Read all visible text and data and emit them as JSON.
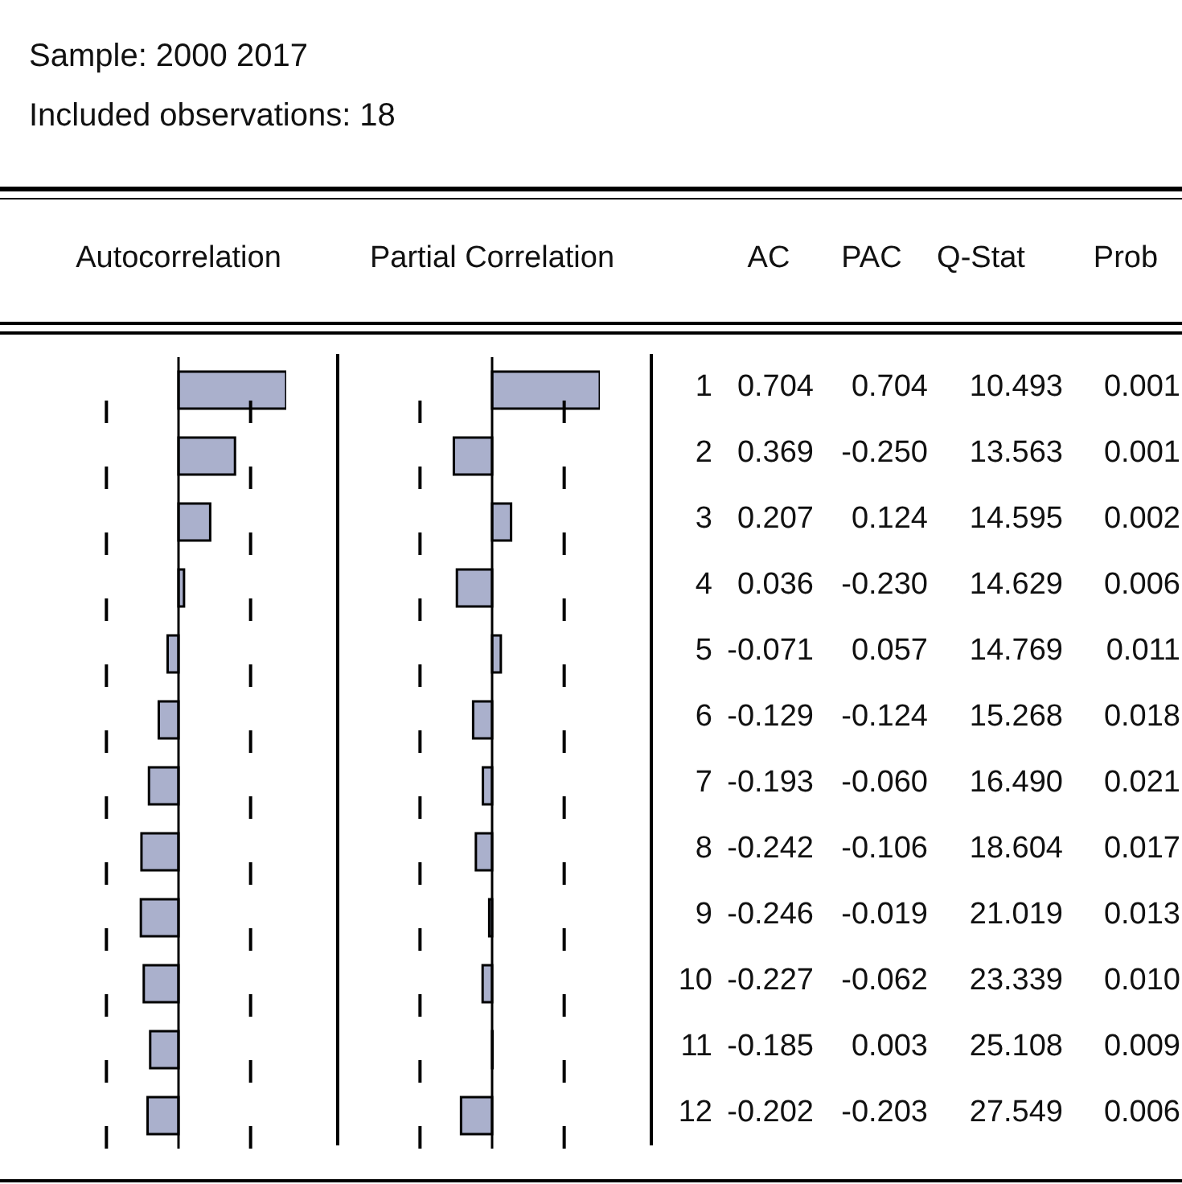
{
  "chart_data": [
    {
      "type": "bar",
      "orientation": "horizontal",
      "title": "Autocorrelation",
      "xlabel": "AC",
      "annotations": [
        "Sample: 2000 2017",
        "Included observations: 18"
      ],
      "categories": [
        "1",
        "2",
        "3",
        "4",
        "5",
        "6",
        "7",
        "8",
        "9",
        "10",
        "11",
        "12"
      ],
      "color": "#aab0cc",
      "tick_labels": "y",
      "values": [
        0.704,
        0.369,
        0.207,
        0.036,
        -0.071,
        -0.129,
        -0.193,
        -0.242,
        -0.246,
        -0.227,
        -0.185,
        -0.202
      ],
      "value_labels": [
        "0.704",
        "0.369",
        "0.207",
        "0.036",
        "-0.071",
        "-0.129",
        "-0.193",
        "-0.242",
        "-0.246",
        "-0.227",
        "-0.185",
        "-0.202"
      ],
      "ref_lines": [
        {
          "axis": "x",
          "value": -0.471,
          "color": "#000000",
          "line_style": "dashed"
        },
        {
          "axis": "x",
          "value": 0.471,
          "color": "#000000",
          "line_style": "dashed"
        }
      ]
    },
    {
      "type": "bar",
      "orientation": "horizontal",
      "title": "Partial Correlation",
      "annotations": [
        "PAC"
      ],
      "categories": [
        "1",
        "2",
        "3",
        "4",
        "5",
        "6",
        "7",
        "8",
        "9",
        "10",
        "11",
        "12"
      ],
      "color": "#aab0cc",
      "tick_labels": false,
      "values": [
        0.704,
        -0.25,
        0.124,
        -0.23,
        0.057,
        -0.124,
        -0.06,
        -0.106,
        -0.019,
        -0.062,
        0.003,
        -0.203
      ],
      "value_labels": [
        "0.704",
        "-0.250",
        "0.124",
        "-0.230",
        "0.057",
        "-0.124",
        "-0.060",
        "-0.106",
        "-0.019",
        "-0.062",
        "0.003",
        "-0.203"
      ],
      "ref_lines": [
        {
          "axis": "x",
          "value": -0.471,
          "color": "#000000",
          "line_style": "dashed"
        },
        {
          "axis": "x",
          "value": 0.471,
          "color": "#000000",
          "line_style": "dashed"
        }
      ]
    },
    {
      "type": "other",
      "xlabel": "Q-Stat",
      "values": [
        10.493,
        13.563,
        14.595,
        14.629,
        14.769,
        15.268,
        16.49,
        18.604,
        21.019,
        23.339,
        25.108,
        27.549
      ],
      "value_labels": [
        "10.493",
        "13.563",
        "14.595",
        "14.629",
        "14.769",
        "15.268",
        "16.490",
        "18.604",
        "21.019",
        "23.339",
        "25.108",
        "27.549"
      ]
    },
    {
      "type": "other",
      "xlabel": "Prob",
      "values": [
        0.001,
        0.001,
        0.002,
        0.006,
        0.011,
        0.018,
        0.021,
        0.017,
        0.013,
        0.01,
        0.009,
        0.006
      ],
      "value_labels": [
        "0.001",
        "0.001",
        "0.002",
        "0.006",
        "0.011",
        "0.018",
        "0.021",
        "0.017",
        "0.013",
        "0.010",
        "0.009",
        "0.006"
      ]
    }
  ]
}
